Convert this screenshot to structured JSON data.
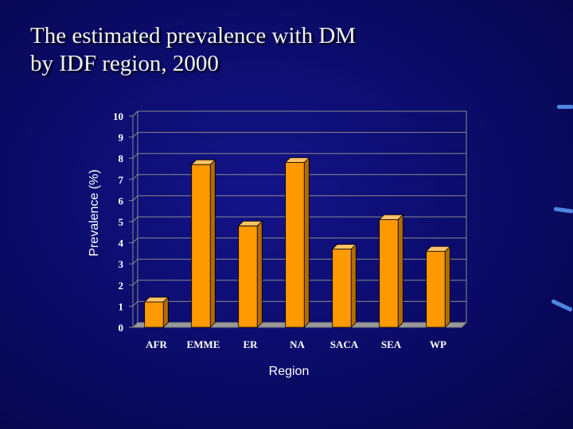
{
  "slide": {
    "title_line1": "The estimated prevalence with DM",
    "title_line2": "by IDF region, 2000"
  },
  "colors": {
    "bar_front": "#ff9900",
    "bar_side": "#b36b00",
    "bar_top": "#ffc266",
    "plot_border": "#8a8a8a"
  },
  "chart_data": {
    "type": "bar",
    "title": "The estimated prevalence with DM by IDF region, 2000",
    "xlabel": "Region",
    "ylabel": "Prevalence (%)",
    "ylim": [
      0,
      10
    ],
    "yticks": [
      0,
      1,
      2,
      3,
      4,
      5,
      6,
      7,
      8,
      9,
      10
    ],
    "grid": true,
    "categories": [
      "AFR",
      "EMME",
      "ER",
      "NA",
      "SACA",
      "SEA",
      "WP"
    ],
    "values": [
      1.2,
      7.7,
      4.8,
      7.8,
      3.7,
      5.1,
      3.6
    ]
  }
}
